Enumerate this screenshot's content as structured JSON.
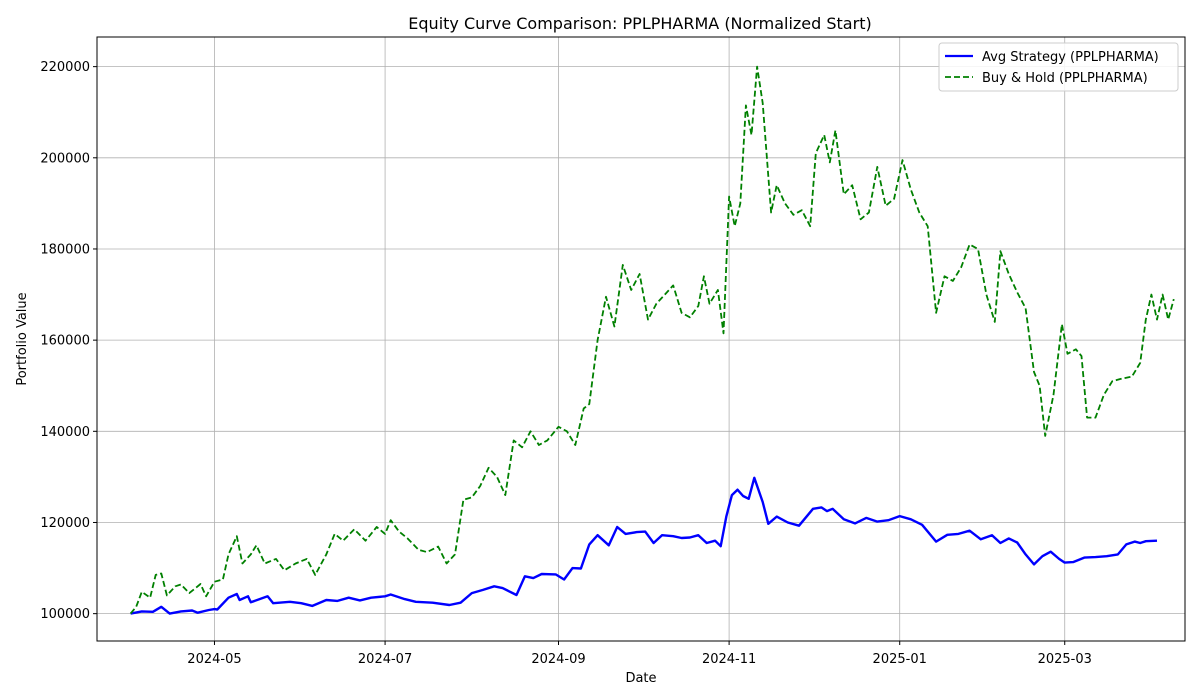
{
  "chart_data": {
    "type": "line",
    "title": "Equity Curve Comparison: PPLPHARMA (Normalized Start)",
    "xlabel": "Date",
    "ylabel": "Portfolio Value",
    "x_ticks": [
      "2024-05",
      "2024-07",
      "2024-09",
      "2024-11",
      "2025-01",
      "2025-03"
    ],
    "x_tick_dates": [
      "2024-05-01",
      "2024-07-01",
      "2024-09-01",
      "2024-11-01",
      "2025-01-01",
      "2025-03-01"
    ],
    "y_ticks": [
      100000,
      120000,
      140000,
      160000,
      180000,
      200000,
      220000
    ],
    "xlim": [
      "2024-03-20",
      "2025-04-13"
    ],
    "ylim": [
      94000,
      226500
    ],
    "grid": true,
    "legend_position": "top-right",
    "series": [
      {
        "name": "Avg Strategy (PPLPHARMA)",
        "color": "#0000ff",
        "style": "solid",
        "points": [
          [
            "2024-04-01",
            100000
          ],
          [
            "2024-04-05",
            100500
          ],
          [
            "2024-04-09",
            100400
          ],
          [
            "2024-04-12",
            101500
          ],
          [
            "2024-04-15",
            100000
          ],
          [
            "2024-04-19",
            100500
          ],
          [
            "2024-04-23",
            100700
          ],
          [
            "2024-04-25",
            100200
          ],
          [
            "2024-04-29",
            100800
          ],
          [
            "2024-05-01",
            101000
          ],
          [
            "2024-05-02",
            100900
          ],
          [
            "2024-05-06",
            103500
          ],
          [
            "2024-05-09",
            104300
          ],
          [
            "2024-05-10",
            103000
          ],
          [
            "2024-05-13",
            103800
          ],
          [
            "2024-05-14",
            102500
          ],
          [
            "2024-05-20",
            103800
          ],
          [
            "2024-05-22",
            102300
          ],
          [
            "2024-05-28",
            102600
          ],
          [
            "2024-06-01",
            102300
          ],
          [
            "2024-06-05",
            101700
          ],
          [
            "2024-06-10",
            103000
          ],
          [
            "2024-06-14",
            102800
          ],
          [
            "2024-06-18",
            103500
          ],
          [
            "2024-06-22",
            102900
          ],
          [
            "2024-06-26",
            103500
          ],
          [
            "2024-07-01",
            103800
          ],
          [
            "2024-07-03",
            104200
          ],
          [
            "2024-07-08",
            103200
          ],
          [
            "2024-07-12",
            102600
          ],
          [
            "2024-07-18",
            102400
          ],
          [
            "2024-07-24",
            101900
          ],
          [
            "2024-07-28",
            102400
          ],
          [
            "2024-08-01",
            104500
          ],
          [
            "2024-08-05",
            105200
          ],
          [
            "2024-08-09",
            106000
          ],
          [
            "2024-08-12",
            105600
          ],
          [
            "2024-08-17",
            104100
          ],
          [
            "2024-08-20",
            108200
          ],
          [
            "2024-08-23",
            107800
          ],
          [
            "2024-08-26",
            108700
          ],
          [
            "2024-08-31",
            108600
          ],
          [
            "2024-09-03",
            107500
          ],
          [
            "2024-09-06",
            110000
          ],
          [
            "2024-09-09",
            109900
          ],
          [
            "2024-09-12",
            115200
          ],
          [
            "2024-09-15",
            117200
          ],
          [
            "2024-09-19",
            115000
          ],
          [
            "2024-09-22",
            119000
          ],
          [
            "2024-09-25",
            117500
          ],
          [
            "2024-09-29",
            117900
          ],
          [
            "2024-10-02",
            118000
          ],
          [
            "2024-10-05",
            115500
          ],
          [
            "2024-10-08",
            117200
          ],
          [
            "2024-10-12",
            117000
          ],
          [
            "2024-10-15",
            116600
          ],
          [
            "2024-10-18",
            116700
          ],
          [
            "2024-10-21",
            117200
          ],
          [
            "2024-10-24",
            115500
          ],
          [
            "2024-10-27",
            116000
          ],
          [
            "2024-10-29",
            114800
          ],
          [
            "2024-10-31",
            121300
          ],
          [
            "2024-11-02",
            126000
          ],
          [
            "2024-11-04",
            127200
          ],
          [
            "2024-11-06",
            125800
          ],
          [
            "2024-11-08",
            125200
          ],
          [
            "2024-11-10",
            129800
          ],
          [
            "2024-11-13",
            124500
          ],
          [
            "2024-11-15",
            119700
          ],
          [
            "2024-11-18",
            121300
          ],
          [
            "2024-11-22",
            120000
          ],
          [
            "2024-11-26",
            119300
          ],
          [
            "2024-12-01",
            123000
          ],
          [
            "2024-12-04",
            123300
          ],
          [
            "2024-12-06",
            122500
          ],
          [
            "2024-12-08",
            123000
          ],
          [
            "2024-12-12",
            120700
          ],
          [
            "2024-12-16",
            119800
          ],
          [
            "2024-12-20",
            121000
          ],
          [
            "2024-12-24",
            120200
          ],
          [
            "2024-12-28",
            120500
          ],
          [
            "2025-01-01",
            121400
          ],
          [
            "2025-01-05",
            120700
          ],
          [
            "2025-01-09",
            119500
          ],
          [
            "2025-01-14",
            115800
          ],
          [
            "2025-01-18",
            117300
          ],
          [
            "2025-01-22",
            117500
          ],
          [
            "2025-01-26",
            118200
          ],
          [
            "2025-01-30",
            116300
          ],
          [
            "2025-02-03",
            117200
          ],
          [
            "2025-02-06",
            115500
          ],
          [
            "2025-02-09",
            116500
          ],
          [
            "2025-02-12",
            115600
          ],
          [
            "2025-02-15",
            113000
          ],
          [
            "2025-02-18",
            110800
          ],
          [
            "2025-02-21",
            112600
          ],
          [
            "2025-02-24",
            113600
          ],
          [
            "2025-02-27",
            112000
          ],
          [
            "2025-03-01",
            111200
          ],
          [
            "2025-03-04",
            111300
          ],
          [
            "2025-03-08",
            112300
          ],
          [
            "2025-03-12",
            112400
          ],
          [
            "2025-03-16",
            112600
          ],
          [
            "2025-03-20",
            113000
          ],
          [
            "2025-03-23",
            115200
          ],
          [
            "2025-03-26",
            115800
          ],
          [
            "2025-03-28",
            115500
          ],
          [
            "2025-03-30",
            115900
          ],
          [
            "2025-04-03",
            116000
          ]
        ]
      },
      {
        "name": "Buy & Hold (PPLPHARMA)",
        "color": "#008000",
        "style": "dashed",
        "points": [
          [
            "2024-04-01",
            100000
          ],
          [
            "2024-04-03",
            101500
          ],
          [
            "2024-04-05",
            104800
          ],
          [
            "2024-04-08",
            103500
          ],
          [
            "2024-04-10",
            108500
          ],
          [
            "2024-04-12",
            108800
          ],
          [
            "2024-04-14",
            104000
          ],
          [
            "2024-04-17",
            106000
          ],
          [
            "2024-04-19",
            106400
          ],
          [
            "2024-04-22",
            104500
          ],
          [
            "2024-04-26",
            106500
          ],
          [
            "2024-04-28",
            103800
          ],
          [
            "2024-05-01",
            107000
          ],
          [
            "2024-05-04",
            107500
          ],
          [
            "2024-05-06",
            113000
          ],
          [
            "2024-05-09",
            117000
          ],
          [
            "2024-05-11",
            111000
          ],
          [
            "2024-05-14",
            113000
          ],
          [
            "2024-05-16",
            115000
          ],
          [
            "2024-05-19",
            111000
          ],
          [
            "2024-05-23",
            112000
          ],
          [
            "2024-05-26",
            109500
          ],
          [
            "2024-05-30",
            111000
          ],
          [
            "2024-06-03",
            112000
          ],
          [
            "2024-06-06",
            108500
          ],
          [
            "2024-06-10",
            113000
          ],
          [
            "2024-06-13",
            117500
          ],
          [
            "2024-06-16",
            116000
          ],
          [
            "2024-06-20",
            118500
          ],
          [
            "2024-06-24",
            116000
          ],
          [
            "2024-06-28",
            119000
          ],
          [
            "2024-07-01",
            117500
          ],
          [
            "2024-07-03",
            120500
          ],
          [
            "2024-07-06",
            118000
          ],
          [
            "2024-07-09",
            116500
          ],
          [
            "2024-07-13",
            114000
          ],
          [
            "2024-07-16",
            113500
          ],
          [
            "2024-07-20",
            114700
          ],
          [
            "2024-07-23",
            111000
          ],
          [
            "2024-07-26",
            113000
          ],
          [
            "2024-07-29",
            125000
          ],
          [
            "2024-08-01",
            125500
          ],
          [
            "2024-08-04",
            128000
          ],
          [
            "2024-08-07",
            132000
          ],
          [
            "2024-08-10",
            130000
          ],
          [
            "2024-08-13",
            126000
          ],
          [
            "2024-08-16",
            138000
          ],
          [
            "2024-08-19",
            136500
          ],
          [
            "2024-08-22",
            140000
          ],
          [
            "2024-08-25",
            137000
          ],
          [
            "2024-08-28",
            138000
          ],
          [
            "2024-09-01",
            141000
          ],
          [
            "2024-09-04",
            140000
          ],
          [
            "2024-09-07",
            137000
          ],
          [
            "2024-09-10",
            145000
          ],
          [
            "2024-09-12",
            146000
          ],
          [
            "2024-09-15",
            160000
          ],
          [
            "2024-09-18",
            169500
          ],
          [
            "2024-09-21",
            163000
          ],
          [
            "2024-09-24",
            176500
          ],
          [
            "2024-09-27",
            171000
          ],
          [
            "2024-09-30",
            174500
          ],
          [
            "2024-10-03",
            164500
          ],
          [
            "2024-10-06",
            168000
          ],
          [
            "2024-10-09",
            170000
          ],
          [
            "2024-10-12",
            172000
          ],
          [
            "2024-10-15",
            166000
          ],
          [
            "2024-10-18",
            165000
          ],
          [
            "2024-10-21",
            167500
          ],
          [
            "2024-10-23",
            174000
          ],
          [
            "2024-10-25",
            168000
          ],
          [
            "2024-10-28",
            171000
          ],
          [
            "2024-10-30",
            161500
          ],
          [
            "2024-11-01",
            191500
          ],
          [
            "2024-11-03",
            185000
          ],
          [
            "2024-11-05",
            190000
          ],
          [
            "2024-11-07",
            211500
          ],
          [
            "2024-11-09",
            205000
          ],
          [
            "2024-11-11",
            220000
          ],
          [
            "2024-11-13",
            212000
          ],
          [
            "2024-11-16",
            188000
          ],
          [
            "2024-11-18",
            194000
          ],
          [
            "2024-11-21",
            190000
          ],
          [
            "2024-11-24",
            187500
          ],
          [
            "2024-11-27",
            188500
          ],
          [
            "2024-11-30",
            185000
          ],
          [
            "2024-12-02",
            201000
          ],
          [
            "2024-12-05",
            205000
          ],
          [
            "2024-12-07",
            199000
          ],
          [
            "2024-12-09",
            206000
          ],
          [
            "2024-12-12",
            192000
          ],
          [
            "2024-12-15",
            194000
          ],
          [
            "2024-12-18",
            186500
          ],
          [
            "2024-12-21",
            188000
          ],
          [
            "2024-12-24",
            198000
          ],
          [
            "2024-12-27",
            189500
          ],
          [
            "2024-12-30",
            191000
          ],
          [
            "2025-01-02",
            199500
          ],
          [
            "2025-01-05",
            193000
          ],
          [
            "2025-01-08",
            188000
          ],
          [
            "2025-01-11",
            185000
          ],
          [
            "2025-01-14",
            166000
          ],
          [
            "2025-01-17",
            174000
          ],
          [
            "2025-01-20",
            173000
          ],
          [
            "2025-01-23",
            176000
          ],
          [
            "2025-01-26",
            181000
          ],
          [
            "2025-01-29",
            180000
          ],
          [
            "2025-02-01",
            170000
          ],
          [
            "2025-02-04",
            164000
          ],
          [
            "2025-02-06",
            179500
          ],
          [
            "2025-02-09",
            174500
          ],
          [
            "2025-02-12",
            170500
          ],
          [
            "2025-02-15",
            167000
          ],
          [
            "2025-02-18",
            153000
          ],
          [
            "2025-02-20",
            150000
          ],
          [
            "2025-02-22",
            139000
          ],
          [
            "2025-02-25",
            148000
          ],
          [
            "2025-02-28",
            163500
          ],
          [
            "2025-03-02",
            157000
          ],
          [
            "2025-03-05",
            158000
          ],
          [
            "2025-03-07",
            156500
          ],
          [
            "2025-03-09",
            143000
          ],
          [
            "2025-03-12",
            143000
          ],
          [
            "2025-03-15",
            148000
          ],
          [
            "2025-03-18",
            151000
          ],
          [
            "2025-03-21",
            151500
          ],
          [
            "2025-03-25",
            152000
          ],
          [
            "2025-03-28",
            155000
          ],
          [
            "2025-03-30",
            164500
          ],
          [
            "2025-04-01",
            170000
          ],
          [
            "2025-04-03",
            164500
          ],
          [
            "2025-04-05",
            170000
          ],
          [
            "2025-04-07",
            164500
          ],
          [
            "2025-04-09",
            169000
          ]
        ]
      }
    ]
  }
}
